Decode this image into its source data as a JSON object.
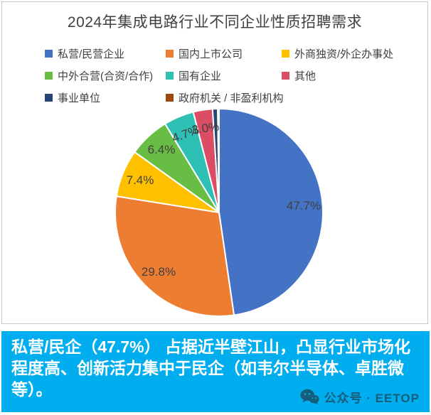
{
  "title": "2024年集成电路行业不同企业性质招聘需求",
  "chart_data": {
    "type": "pie",
    "title": "2024年集成电路行业不同企业性质招聘需求",
    "unit": "%",
    "legend_position": "top",
    "direction": "clockwise",
    "start_angle": "12-o'clock",
    "series": [
      {
        "name": "私营/民营企业",
        "value": 47.7,
        "color": "#4472C4",
        "label": "47.7%"
      },
      {
        "name": "国内上市公司",
        "value": 29.8,
        "color": "#ED7D31",
        "label": "29.8%"
      },
      {
        "name": "外商独资/外企办事处",
        "value": 7.4,
        "color": "#FFC000",
        "label": "7.4%"
      },
      {
        "name": "中外合营(合资/合作)",
        "value": 6.4,
        "color": "#68BD45",
        "label": "6.4%"
      },
      {
        "name": "国有企业",
        "value": 4.7,
        "color": "#2EC0B4",
        "label": "4.7%"
      },
      {
        "name": "其他",
        "value": 3.0,
        "color": "#DB4D64",
        "label": "3.0%"
      },
      {
        "name": "事业单位",
        "value": 0.8,
        "color": "#264478",
        "label": ""
      },
      {
        "name": "政府机关 / 非盈利机构",
        "value": 0.2,
        "color": "#9E480E",
        "label": ""
      }
    ]
  },
  "caption": {
    "text": "私营/民企（47.7%） 占据近半壁江山，凸显行业市场化程度高、创新活力集中于民企（如韦尔半导体、卓胜微等）。",
    "bg_color": "#00AEEF",
    "text_color": "#FFFFFF"
  },
  "watermark": {
    "icon": "wechat-icon",
    "text": "公众号 · EETOP"
  }
}
